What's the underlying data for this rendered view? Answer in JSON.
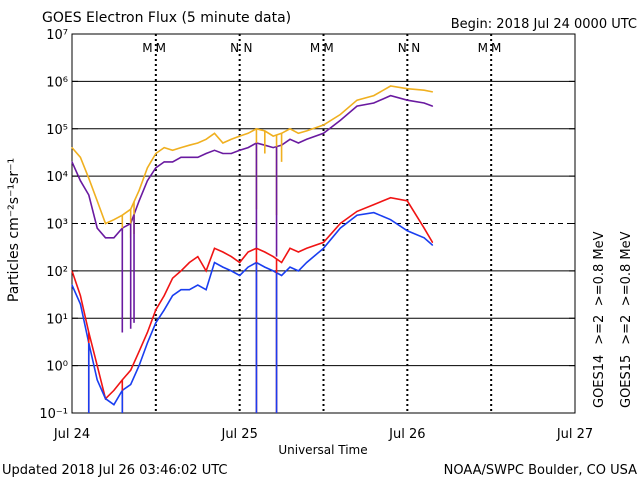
{
  "header": {
    "title": "GOES Electron Flux (5 minute data)",
    "begin": "Begin: 2018 Jul 24 0000 UTC"
  },
  "footer": {
    "updated": "Updated 2018 Jul 26 03:46:02 UTC",
    "credit": "NOAA/SWPC Boulder, CO USA"
  },
  "colors": {
    "blue": "#1a3ef0",
    "red": "#f01414",
    "purple": "#6a1aa0",
    "gold": "#f0b020",
    "midnight_m": "#1a3ef0",
    "midnight_n": "#1a3ef0"
  },
  "markers": [
    {
      "day": 0.45,
      "letter": "M",
      "color": "#1a3ef0"
    },
    {
      "day": 0.53,
      "letter": "M",
      "color": "#f01414"
    },
    {
      "day": 0.97,
      "letter": "N",
      "color": "#1a3ef0"
    },
    {
      "day": 1.05,
      "letter": "N",
      "color": "#f01414"
    },
    {
      "day": 1.45,
      "letter": "M",
      "color": "#1a3ef0"
    },
    {
      "day": 1.53,
      "letter": "M",
      "color": "#f01414"
    },
    {
      "day": 1.97,
      "letter": "N",
      "color": "#1a3ef0"
    },
    {
      "day": 2.05,
      "letter": "N",
      "color": "#f01414"
    },
    {
      "day": 2.45,
      "letter": "M",
      "color": "#1a3ef0"
    },
    {
      "day": 2.53,
      "letter": "M",
      "color": "#f01414"
    }
  ],
  "legend": {
    "right_column_1": [
      {
        "text": "GOES14",
        "color": "#000000"
      },
      {
        "text": ">=2",
        "color": "#1a3ef0"
      },
      {
        "text": ">=0.8 MeV",
        "color": "#6a1aa0"
      }
    ],
    "right_column_2": [
      {
        "text": "GOES15",
        "color": "#000000"
      },
      {
        "text": ">=2",
        "color": "#f01414"
      },
      {
        "text": ">=0.8 MeV",
        "color": "#f0b020"
      }
    ]
  },
  "chart_data": {
    "type": "line",
    "title": "GOES Electron Flux (5 minute data)",
    "xlabel": "Universal Time",
    "ylabel": "Particles cm⁻²s⁻¹sr⁻¹",
    "x_unit": "days since 2018 Jul 24 00:00 UTC",
    "xlim": [
      0,
      3
    ],
    "x_ticks": [
      {
        "value": 0,
        "label": "Jul 24"
      },
      {
        "value": 1,
        "label": "Jul 25"
      },
      {
        "value": 2,
        "label": "Jul 26"
      },
      {
        "value": 3,
        "label": "Jul 27"
      }
    ],
    "yscale": "log",
    "ylim": [
      0.1,
      10000000
    ],
    "y_ticks": [
      {
        "value": 0.1,
        "label": "10⁻¹"
      },
      {
        "value": 1,
        "label": "10⁰"
      },
      {
        "value": 10,
        "label": "10¹"
      },
      {
        "value": 100,
        "label": "10²"
      },
      {
        "value": 1000,
        "label": "10³"
      },
      {
        "value": 10000,
        "label": "10⁴"
      },
      {
        "value": 100000,
        "label": "10⁵"
      },
      {
        "value": 1000000,
        "label": "10⁶"
      },
      {
        "value": 10000000,
        "label": "10⁷"
      }
    ],
    "threshold": {
      "value": 1000,
      "style": "dashed"
    },
    "series": [
      {
        "name": "GOES15 >=0.8 MeV",
        "color": "#f0b020",
        "x": [
          0.0,
          0.05,
          0.1,
          0.15,
          0.2,
          0.25,
          0.3,
          0.35,
          0.4,
          0.45,
          0.5,
          0.55,
          0.6,
          0.65,
          0.7,
          0.75,
          0.8,
          0.85,
          0.9,
          0.95,
          1.0,
          1.05,
          1.1,
          1.15,
          1.2,
          1.25,
          1.3,
          1.35,
          1.4,
          1.5,
          1.6,
          1.7,
          1.8,
          1.9,
          2.0,
          2.1,
          2.15
        ],
        "values": [
          40000,
          25000,
          9000,
          3000,
          1000,
          1200,
          1500,
          2000,
          5000,
          15000,
          30000,
          40000,
          35000,
          40000,
          45000,
          50000,
          60000,
          80000,
          50000,
          60000,
          70000,
          80000,
          100000,
          90000,
          70000,
          80000,
          100000,
          80000,
          90000,
          120000,
          200000,
          400000,
          500000,
          800000,
          700000,
          650000,
          600000
        ]
      },
      {
        "name": "GOES14 >=0.8 MeV",
        "color": "#6a1aa0",
        "x": [
          0.0,
          0.05,
          0.1,
          0.15,
          0.2,
          0.25,
          0.3,
          0.35,
          0.4,
          0.45,
          0.5,
          0.55,
          0.6,
          0.65,
          0.7,
          0.75,
          0.8,
          0.85,
          0.9,
          0.95,
          1.0,
          1.05,
          1.1,
          1.15,
          1.2,
          1.25,
          1.3,
          1.35,
          1.4,
          1.5,
          1.6,
          1.7,
          1.8,
          1.9,
          2.0,
          2.1,
          2.15
        ],
        "values": [
          20000,
          8000,
          4000,
          800,
          500,
          500,
          800,
          1000,
          3000,
          8000,
          15000,
          20000,
          20000,
          25000,
          25000,
          25000,
          30000,
          35000,
          30000,
          30000,
          35000,
          40000,
          50000,
          45000,
          40000,
          45000,
          60000,
          50000,
          60000,
          80000,
          150000,
          300000,
          350000,
          500000,
          400000,
          350000,
          300000
        ]
      },
      {
        "name": "GOES15 >=2 MeV",
        "color": "#f01414",
        "x": [
          0.0,
          0.05,
          0.1,
          0.15,
          0.2,
          0.25,
          0.3,
          0.35,
          0.4,
          0.45,
          0.5,
          0.55,
          0.6,
          0.65,
          0.7,
          0.75,
          0.8,
          0.85,
          0.9,
          0.95,
          1.0,
          1.05,
          1.1,
          1.15,
          1.2,
          1.25,
          1.3,
          1.35,
          1.4,
          1.5,
          1.6,
          1.7,
          1.8,
          1.9,
          2.0,
          2.1,
          2.15
        ],
        "values": [
          100,
          30,
          5,
          1,
          0.2,
          0.3,
          0.5,
          0.8,
          2,
          5,
          15,
          30,
          70,
          100,
          150,
          200,
          100,
          300,
          250,
          200,
          150,
          250,
          300,
          250,
          200,
          150,
          300,
          250,
          300,
          400,
          1000,
          1800,
          2500,
          3500,
          3000,
          800,
          400
        ]
      },
      {
        "name": "GOES14 >=2 MeV",
        "color": "#1a3ef0",
        "x": [
          0.0,
          0.05,
          0.1,
          0.15,
          0.2,
          0.25,
          0.3,
          0.35,
          0.4,
          0.45,
          0.5,
          0.55,
          0.6,
          0.65,
          0.7,
          0.75,
          0.8,
          0.85,
          0.9,
          0.95,
          1.0,
          1.05,
          1.1,
          1.15,
          1.2,
          1.25,
          1.3,
          1.35,
          1.4,
          1.5,
          1.6,
          1.7,
          1.8,
          1.9,
          2.0,
          2.1,
          2.15
        ],
        "values": [
          50,
          20,
          3,
          0.5,
          0.2,
          0.15,
          0.3,
          0.4,
          1,
          3,
          8,
          15,
          30,
          40,
          40,
          50,
          40,
          150,
          120,
          100,
          80,
          120,
          150,
          120,
          100,
          80,
          120,
          100,
          150,
          300,
          800,
          1500,
          1700,
          1200,
          700,
          500,
          350
        ]
      }
    ],
    "dropouts": [
      {
        "series": "GOES15 >=0.8 MeV",
        "x": [
          0.3,
          0.35,
          0.37,
          1.1,
          1.15,
          1.22,
          1.25
        ],
        "values": [
          700,
          500,
          600,
          2000,
          30000,
          1500,
          20000
        ]
      },
      {
        "series": "GOES14 >=0.8 MeV",
        "x": [
          0.3,
          0.35,
          0.37,
          1.1,
          1.22
        ],
        "values": [
          5,
          6,
          8,
          300,
          200
        ]
      },
      {
        "series": "GOES15 >=2 MeV",
        "x": [
          0.1,
          0.3,
          1.1,
          1.22
        ],
        "values": [
          0.1,
          0.1,
          0.1,
          0.1
        ]
      },
      {
        "series": "GOES14 >=2 MeV",
        "x": [
          0.1,
          0.3,
          1.1,
          1.22
        ],
        "values": [
          0.1,
          0.1,
          0.1,
          0.1
        ]
      }
    ]
  }
}
